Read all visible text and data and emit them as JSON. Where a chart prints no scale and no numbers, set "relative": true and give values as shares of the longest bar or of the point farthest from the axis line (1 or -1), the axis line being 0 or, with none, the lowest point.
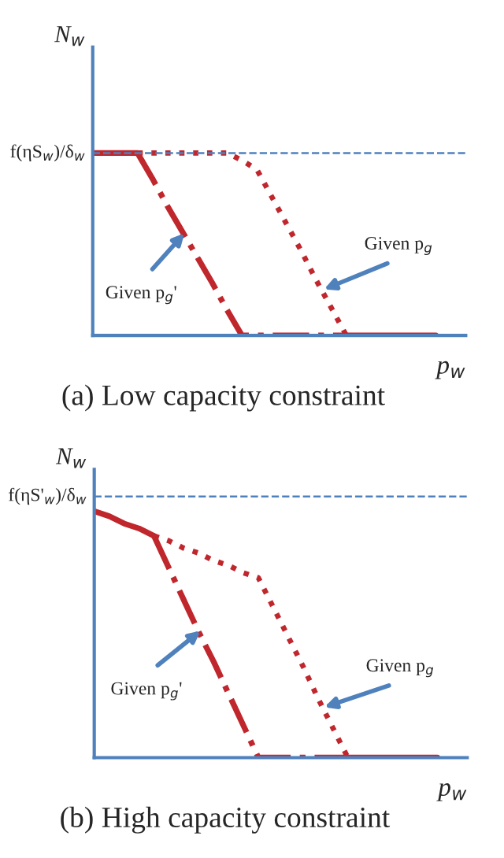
{
  "chart_data": [
    {
      "type": "line",
      "relative": true,
      "title": "(a) Low capacity constraint",
      "xlabel": "p$_{w}$",
      "ylabel": "N$_{w}$",
      "categories": [
        null,
        null,
        null,
        null,
        null,
        null,
        null,
        null,
        null,
        null,
        null,
        null,
        null,
        null,
        null,
        null,
        null,
        null,
        null,
        null,
        null,
        null,
        null,
        null
      ],
      "series": [
        {
          "color": "#c0272d",
          "line_style": "solid",
          "values": [
            1,
            1,
            1,
            1,
            null,
            null,
            null,
            null,
            null,
            null,
            null,
            null,
            null,
            null,
            null,
            null,
            null,
            null,
            null,
            null,
            null,
            null,
            null,
            null
          ]
        },
        {
          "color": "#c0272d",
          "line_style": "dashdot",
          "values": [
            null,
            null,
            null,
            1,
            0.86,
            0.71,
            0.57,
            0.43,
            0.29,
            0.14,
            0,
            0,
            0,
            0,
            0,
            0,
            0,
            0,
            null,
            null,
            null,
            null,
            null,
            null
          ]
        },
        {
          "color": "#c0272d",
          "line_style": "dotted",
          "values": [
            null,
            null,
            null,
            1,
            1,
            1,
            1,
            1,
            1,
            1,
            0.96,
            0.91,
            0.76,
            0.61,
            0.46,
            0.3,
            0.15,
            0,
            null,
            null,
            null,
            null,
            null,
            null
          ]
        },
        {
          "color": "#c0272d",
          "line_style": "solid",
          "values": [
            null,
            null,
            null,
            null,
            null,
            null,
            null,
            null,
            null,
            null,
            null,
            null,
            null,
            null,
            null,
            null,
            null,
            0,
            0,
            0,
            0,
            0,
            0,
            0
          ]
        }
      ],
      "ref_lines": [
        {
          "axis": "y",
          "value": 1,
          "label": "f(ηS$_{w}$)/δ$_{w}$",
          "color": "#4f81bd",
          "line_style": "dashed"
        }
      ],
      "annotations": [
        "Given p$_{g}$'",
        "Given p$_{g}$"
      ]
    },
    {
      "type": "line",
      "relative": true,
      "title": "(b) High capacity constraint",
      "xlabel": "p$_{w}$",
      "ylabel": "N$_{w}$",
      "categories": [
        null,
        null,
        null,
        null,
        null,
        null,
        null,
        null,
        null,
        null,
        null,
        null,
        null,
        null,
        null,
        null,
        null,
        null,
        null,
        null,
        null,
        null,
        null,
        null
      ],
      "series": [
        {
          "color": "#c0272d",
          "line_style": "solid",
          "values": [
            1,
            0.98,
            0.95,
            0.93,
            0.9,
            null,
            null,
            null,
            null,
            null,
            null,
            null,
            null,
            null,
            null,
            null,
            null,
            null,
            null,
            null,
            null,
            null,
            null,
            null
          ]
        },
        {
          "color": "#c0272d",
          "line_style": "dashdot",
          "values": [
            null,
            null,
            null,
            null,
            0.9,
            0.77,
            0.64,
            0.51,
            0.39,
            0.26,
            0.13,
            0,
            0,
            0,
            0,
            0,
            0,
            0,
            null,
            null,
            null,
            null,
            null,
            null
          ]
        },
        {
          "color": "#c0272d",
          "line_style": "dotted",
          "values": [
            null,
            null,
            null,
            null,
            0.9,
            0.88,
            0.85,
            0.83,
            0.8,
            0.78,
            0.75,
            0.73,
            0.61,
            0.49,
            0.37,
            0.24,
            0.12,
            0,
            null,
            null,
            null,
            null,
            null,
            null
          ]
        },
        {
          "color": "#c0272d",
          "line_style": "solid",
          "values": [
            null,
            null,
            null,
            null,
            null,
            null,
            null,
            null,
            null,
            null,
            null,
            null,
            null,
            null,
            null,
            null,
            null,
            0,
            0,
            0,
            0,
            0,
            0,
            0
          ]
        }
      ],
      "ref_lines": [
        {
          "axis": "y",
          "value": 1.06,
          "label": "f(ηS'$_{w}$)/δ$_{w}$",
          "color": "#4f81bd",
          "line_style": "dashed"
        }
      ],
      "annotations": [
        "Given p$_{g}$'",
        "Given p$_{g}$"
      ]
    }
  ]
}
